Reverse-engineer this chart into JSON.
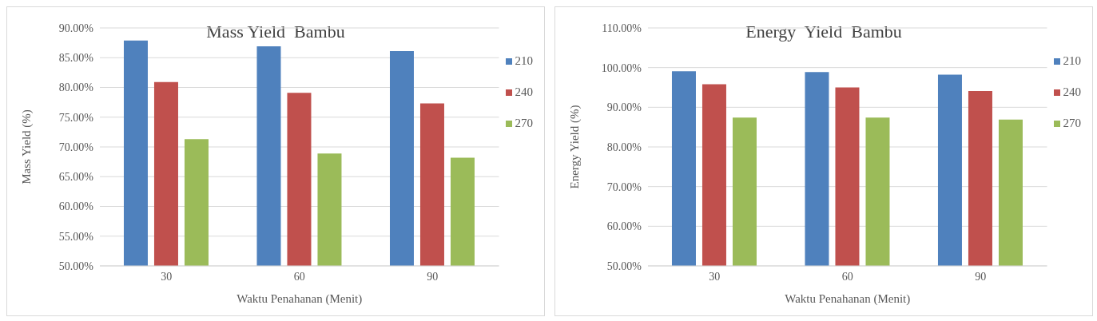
{
  "chart_data": [
    {
      "type": "bar",
      "title": "Mass Yield  Bambu",
      "xlabel": "Waktu Penahanan (Menit)",
      "ylabel": "Mass Yield (%)",
      "categories": [
        "30",
        "60",
        "90"
      ],
      "series": [
        {
          "name": "210",
          "color": "#4f81bd",
          "values": [
            87.9,
            86.9,
            86.1
          ]
        },
        {
          "name": "240",
          "color": "#c0504d",
          "values": [
            80.9,
            79.1,
            77.3
          ]
        },
        {
          "name": "270",
          "color": "#9bbb59",
          "values": [
            71.3,
            68.9,
            68.2
          ]
        }
      ],
      "ylim": [
        50,
        90
      ],
      "yticks": [
        {
          "value": 50,
          "label": "50.00%"
        },
        {
          "value": 55,
          "label": "55.00%"
        },
        {
          "value": 60,
          "label": "60.00%"
        },
        {
          "value": 65,
          "label": "65.00%"
        },
        {
          "value": 70,
          "label": "70.00%"
        },
        {
          "value": 75,
          "label": "75.00%"
        },
        {
          "value": 80,
          "label": "80.00%"
        },
        {
          "value": 85,
          "label": "85.00%"
        },
        {
          "value": 90,
          "label": "90.00%"
        }
      ],
      "grid": "y",
      "legend": "right"
    },
    {
      "type": "bar",
      "title": "Energy  Yield  Bambu",
      "xlabel": "Waktu Penahanan (Menit)",
      "ylabel": "Energy  Yield  (%)",
      "categories": [
        "30",
        "60",
        "90"
      ],
      "series": [
        {
          "name": "210",
          "color": "#4f81bd",
          "values": [
            99.1,
            98.9,
            98.2
          ]
        },
        {
          "name": "240",
          "color": "#c0504d",
          "values": [
            95.8,
            95.0,
            94.1
          ]
        },
        {
          "name": "270",
          "color": "#9bbb59",
          "values": [
            87.4,
            87.4,
            86.9
          ]
        }
      ],
      "ylim": [
        50,
        110
      ],
      "yticks": [
        {
          "value": 50,
          "label": "50.00%"
        },
        {
          "value": 60,
          "label": "60.00%"
        },
        {
          "value": 70,
          "label": "70.00%"
        },
        {
          "value": 80,
          "label": "80.00%"
        },
        {
          "value": 90,
          "label": "90.00%"
        },
        {
          "value": 100,
          "label": "100.00%"
        },
        {
          "value": 110,
          "label": "110.00%"
        }
      ],
      "grid": "y",
      "legend": "right"
    }
  ]
}
